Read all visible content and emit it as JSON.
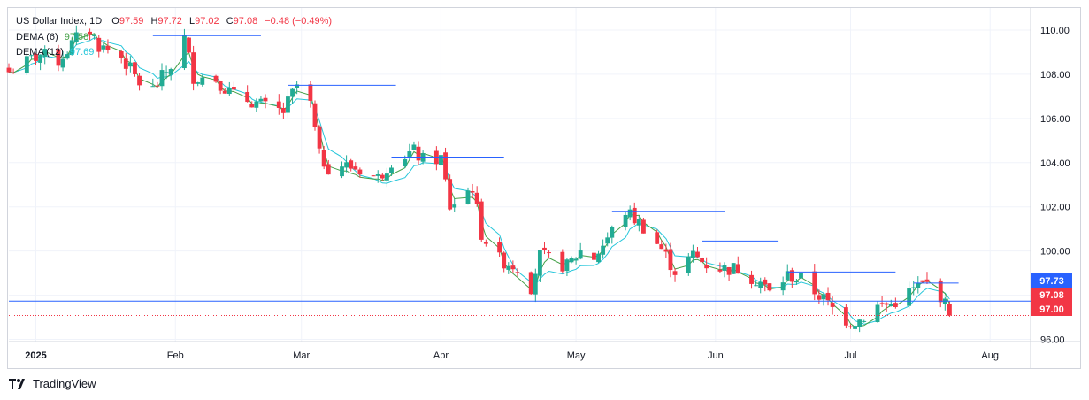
{
  "legend": {
    "title": "US Dollar Index, 1D",
    "o_label": "O",
    "o_value": "97.59",
    "h_label": "H",
    "h_value": "97.72",
    "l_label": "L",
    "l_value": "97.02",
    "c_label": "C",
    "c_value": "97.08",
    "change": "−0.48 (−0.49%)",
    "dema6_label": "DEMA (6)",
    "dema6_value": "97.58",
    "dema12_label": "DEMA (12)",
    "dema12_value": "97.69"
  },
  "brand": "TradingView",
  "colors": {
    "up": "#26a69a",
    "up_body": "#22ab94",
    "down": "#f23645",
    "dema6": "#43a047",
    "dema12": "#26c6da",
    "resistance": "#2962ff",
    "price_line": "#f23645",
    "level_line": "#2962ff",
    "grid": "#f0f3fa",
    "text": "#131722"
  },
  "chart_data": {
    "type": "candlestick",
    "x_type": "date",
    "x_range": [
      "2024-12-26",
      "2025-08-10"
    ],
    "y_range": [
      95.9,
      111.0
    ],
    "y_ticks": [
      96.0,
      98.0,
      100.0,
      102.0,
      104.0,
      106.0,
      108.0,
      110.0
    ],
    "y_tick_labels": [
      "96.00",
      "98.00",
      "100.00",
      "102.00",
      "104.00",
      "106.00",
      "108.00",
      "110.00"
    ],
    "x_ticks": [
      {
        "date": "2025-01-01",
        "label": "2025"
      },
      {
        "date": "2025-02-01",
        "label": "Feb"
      },
      {
        "date": "2025-03-01",
        "label": "Mar"
      },
      {
        "date": "2025-04-01",
        "label": "Apr"
      },
      {
        "date": "2025-05-01",
        "label": "May"
      },
      {
        "date": "2025-06-01",
        "label": "Jun"
      },
      {
        "date": "2025-07-01",
        "label": "Jul"
      },
      {
        "date": "2025-08-01",
        "label": "Aug"
      }
    ],
    "close_path": [
      [
        "2024-12-26",
        108.1
      ],
      [
        "2025-01-02",
        108.9
      ],
      [
        "2025-01-06",
        108.6
      ],
      [
        "2025-01-10",
        109.6
      ],
      [
        "2025-01-13",
        110.0
      ],
      [
        "2025-01-15",
        109.3
      ],
      [
        "2025-01-20",
        108.8
      ],
      [
        "2025-01-24",
        107.6
      ],
      [
        "2025-01-27",
        107.3
      ],
      [
        "2025-01-31",
        108.4
      ],
      [
        "2025-02-03",
        109.6
      ],
      [
        "2025-02-05",
        107.9
      ],
      [
        "2025-02-10",
        107.8
      ],
      [
        "2025-02-14",
        107.0
      ],
      [
        "2025-02-18",
        106.8
      ],
      [
        "2025-02-21",
        106.5
      ],
      [
        "2025-02-25",
        106.3
      ],
      [
        "2025-02-28",
        107.5
      ],
      [
        "2025-03-03",
        106.6
      ],
      [
        "2025-03-05",
        104.3
      ],
      [
        "2025-03-07",
        103.8
      ],
      [
        "2025-03-10",
        103.9
      ],
      [
        "2025-03-14",
        103.7
      ],
      [
        "2025-03-18",
        103.3
      ],
      [
        "2025-03-21",
        104.1
      ],
      [
        "2025-03-26",
        104.5
      ],
      [
        "2025-03-28",
        104.1
      ],
      [
        "2025-04-01",
        104.2
      ],
      [
        "2025-04-03",
        102.0
      ],
      [
        "2025-04-08",
        102.9
      ],
      [
        "2025-04-10",
        100.8
      ],
      [
        "2025-04-14",
        99.6
      ],
      [
        "2025-04-18",
        99.3
      ],
      [
        "2025-04-21",
        98.4
      ],
      [
        "2025-04-23",
        99.8
      ],
      [
        "2025-04-29",
        99.3
      ],
      [
        "2025-05-02",
        100.0
      ],
      [
        "2025-05-05",
        99.7
      ],
      [
        "2025-05-08",
        100.6
      ],
      [
        "2025-05-12",
        101.8
      ],
      [
        "2025-05-16",
        101.1
      ],
      [
        "2025-05-20",
        100.1
      ],
      [
        "2025-05-23",
        99.1
      ],
      [
        "2025-05-27",
        99.8
      ],
      [
        "2025-05-30",
        99.4
      ],
      [
        "2025-06-03",
        99.2
      ],
      [
        "2025-06-06",
        99.2
      ],
      [
        "2025-06-11",
        98.6
      ],
      [
        "2025-06-13",
        98.1
      ],
      [
        "2025-06-17",
        98.9
      ],
      [
        "2025-06-20",
        98.7
      ],
      [
        "2025-06-24",
        98.0
      ],
      [
        "2025-06-27",
        97.4
      ],
      [
        "2025-06-30",
        96.9
      ],
      [
        "2025-07-01",
        96.8
      ],
      [
        "2025-07-03",
        96.9
      ],
      [
        "2025-07-07",
        97.5
      ],
      [
        "2025-07-10",
        97.6
      ],
      [
        "2025-07-14",
        98.1
      ],
      [
        "2025-07-16",
        98.4
      ],
      [
        "2025-07-18",
        98.5
      ],
      [
        "2025-07-21",
        98.0
      ],
      [
        "2025-07-23",
        97.1
      ]
    ],
    "resistance_lines": [
      {
        "start": "2025-01-27",
        "end": "2025-02-20",
        "price": 109.75
      },
      {
        "start": "2025-02-26",
        "end": "2025-03-22",
        "price": 107.5
      },
      {
        "start": "2025-03-21",
        "end": "2025-04-15",
        "price": 104.25
      },
      {
        "start": "2025-05-09",
        "end": "2025-06-03",
        "price": 101.8
      },
      {
        "start": "2025-05-29",
        "end": "2025-06-15",
        "price": 100.45
      },
      {
        "start": "2025-06-17",
        "end": "2025-07-11",
        "price": 99.05
      },
      {
        "start": "2025-07-15",
        "end": "2025-07-25",
        "price": 98.55
      }
    ],
    "horizontal_lines": [
      {
        "price": 97.73,
        "label": "97.73",
        "style": "solid"
      },
      {
        "price": 97.08,
        "label": "97.08",
        "style": "dotted"
      }
    ],
    "price_labels": [
      {
        "price": 97.73,
        "label": "97.73",
        "color": "#2962ff"
      },
      {
        "price": 97.08,
        "label": "97.08",
        "color": "#f23645"
      },
      {
        "price": 97.0,
        "label": "97.00",
        "color": "#f23645"
      }
    ],
    "indicators": [
      {
        "name": "DEMA (6)",
        "last": 97.58
      },
      {
        "name": "DEMA (12)",
        "last": 97.69
      }
    ]
  }
}
